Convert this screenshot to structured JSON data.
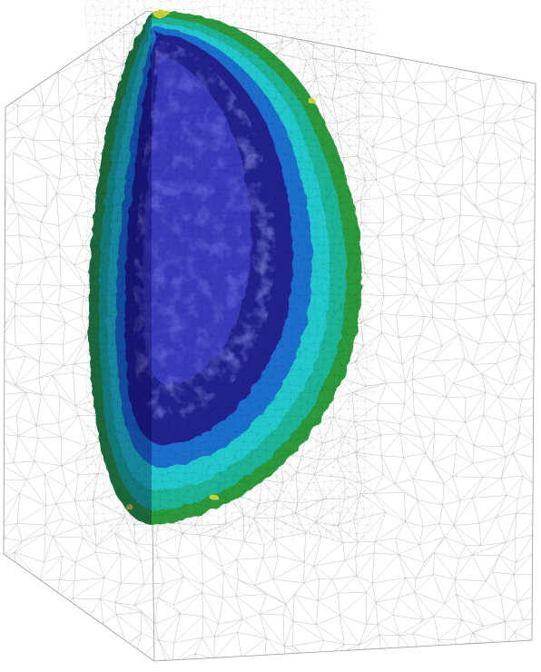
{
  "scene": {
    "subject": "fea-mesh-contour-render",
    "colors": {
      "background": "#ffffff",
      "mesh": "#b8b8b8",
      "edge": "#9a9a9a",
      "contour_bands": [
        "#2a2a9a",
        "#3a3ed0",
        "#5a5ae6",
        "#1e7fcf",
        "#19c3c8",
        "#3bd6b8",
        "#23b07a",
        "#2f8f2f",
        "#c9d23a"
      ]
    }
  }
}
